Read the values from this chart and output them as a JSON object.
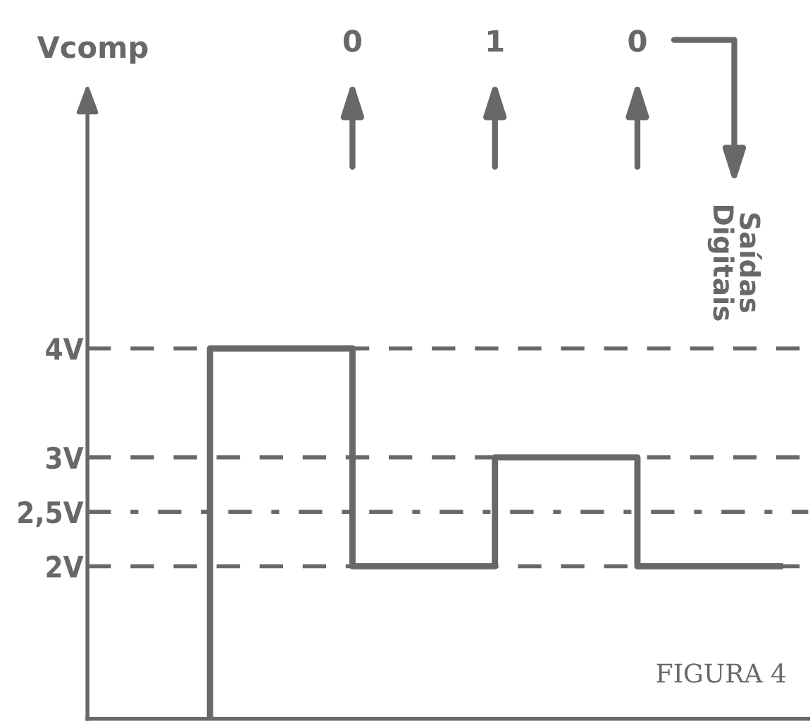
{
  "chart_data": {
    "type": "step",
    "ylabel": "Vcomp",
    "categories": [
      null,
      null,
      null,
      null,
      null
    ],
    "series": [
      {
        "color": "#686868",
        "values": [
          0.6,
          4,
          2,
          3,
          2
        ]
      }
    ],
    "ylim": [
      0.6,
      6.3
    ],
    "yticks": [
      {
        "value": 2,
        "label": "2V"
      },
      {
        "value": 2.5,
        "label": "2,5V"
      },
      {
        "value": 3,
        "label": "3V"
      },
      {
        "value": 4,
        "label": "4V"
      }
    ],
    "tick_labels": "y",
    "grid": false,
    "legend": false,
    "line_style": "solid",
    "ref_lines": [
      {
        "axis": "y",
        "value": 4,
        "line_style": "dashed",
        "color": "#686868"
      },
      {
        "axis": "y",
        "value": 3,
        "line_style": "dashed",
        "color": "#686868"
      },
      {
        "axis": "y",
        "value": 2.5,
        "line_style": "dashdot",
        "color": "#686868"
      },
      {
        "axis": "y",
        "value": 2,
        "line_style": "dashed",
        "color": "#686868"
      }
    ],
    "annotations": [
      "0",
      "1",
      "0",
      "Saídas\nDigitais",
      "FIGURA 4"
    ]
  }
}
